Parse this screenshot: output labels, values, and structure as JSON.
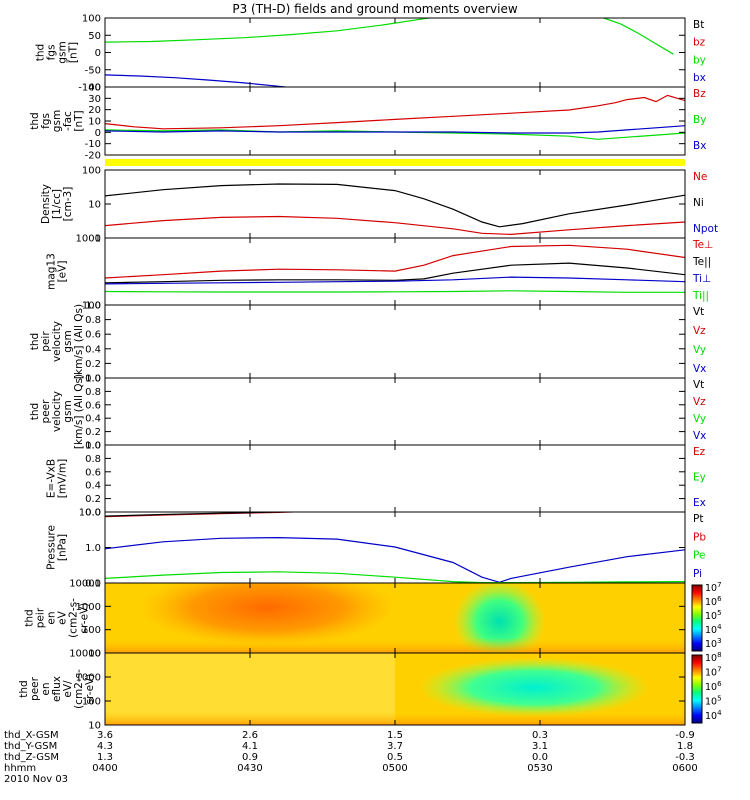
{
  "title": "P3 (TH-D) fields and ground moments overview",
  "colors": {
    "black": "#000000",
    "red": "#d40000",
    "green": "#00dd00",
    "blue": "#0000c8",
    "yellow": "#ffff00"
  },
  "spectrogram_scale": [
    "#00007f",
    "#0000ff",
    "#0080ff",
    "#00ffff",
    "#00ff80",
    "#80ff00",
    "#ffff00",
    "#ff8000",
    "#ff0000",
    "#800000"
  ],
  "chart_data": [
    {
      "id": "fgs_gsm",
      "type": "line",
      "ylabel": [
        "thd",
        "fgs",
        "gsm",
        "[nT]"
      ],
      "ylim": [
        -100,
        100
      ],
      "yticks": [
        "100",
        "50",
        "0",
        "-50",
        "-100"
      ],
      "legend": [
        {
          "text": "Bt",
          "color": "black"
        },
        {
          "text": "bz",
          "color": "red"
        },
        {
          "text": "by",
          "color": "green"
        },
        {
          "text": "bx",
          "color": "blue"
        }
      ],
      "series": [
        {
          "color": "green",
          "x": [
            0,
            0.08,
            0.16,
            0.24,
            0.32,
            0.4,
            0.48,
            0.55,
            0.61,
            0.84,
            0.86,
            0.89,
            0.92,
            0.95,
            0.98
          ],
          "y": [
            30,
            32,
            37,
            43,
            52,
            63,
            80,
            98,
            110,
            110,
            100,
            82,
            55,
            25,
            -5
          ]
        },
        {
          "color": "blue",
          "x": [
            0,
            0.06,
            0.12,
            0.18,
            0.24,
            0.3,
            0.34
          ],
          "y": [
            -65,
            -68,
            -73,
            -80,
            -88,
            -98,
            -105
          ]
        }
      ]
    },
    {
      "id": "fgs_fac",
      "type": "line",
      "ylabel": [
        "thd",
        "fgs",
        "gsm",
        "-fac",
        "[nT]"
      ],
      "ylim": [
        -25,
        40
      ],
      "yticks": [
        "40",
        "30",
        "20",
        "10",
        "0",
        "-10",
        "-20"
      ],
      "legend": [
        {
          "text": "Bz",
          "color": "red"
        },
        {
          "text": "By",
          "color": "green"
        },
        {
          "text": "Bx",
          "color": "blue"
        }
      ],
      "series": [
        {
          "color": "red",
          "x": [
            0,
            0.05,
            0.1,
            0.2,
            0.3,
            0.4,
            0.5,
            0.6,
            0.7,
            0.8,
            0.85,
            0.88,
            0.9,
            0.93,
            0.95,
            0.97,
            1.0
          ],
          "y": [
            5,
            2,
            0,
            1,
            3,
            6,
            9,
            12,
            15,
            18,
            22,
            25,
            28,
            30,
            26,
            32,
            27
          ]
        },
        {
          "color": "green",
          "x": [
            0,
            0.1,
            0.2,
            0.3,
            0.4,
            0.5,
            0.6,
            0.7,
            0.8,
            0.85,
            0.9,
            0.95,
            1.0
          ],
          "y": [
            -1,
            -2,
            -1,
            -3,
            -2,
            -3,
            -4,
            -5,
            -7,
            -10,
            -8,
            -6,
            -4
          ]
        },
        {
          "color": "blue",
          "x": [
            0,
            0.1,
            0.2,
            0.3,
            0.4,
            0.5,
            0.6,
            0.7,
            0.8,
            0.85,
            0.9,
            0.95,
            1.0
          ],
          "y": [
            -2,
            -3,
            -2,
            -3,
            -3,
            -3,
            -3,
            -4,
            -4,
            -3,
            -1,
            1,
            3
          ]
        }
      ],
      "flag_bar": {
        "color": "yellow"
      }
    },
    {
      "id": "density",
      "type": "line",
      "yscale": "log",
      "ylabel": [
        "Density",
        "[1/cc]",
        "[cm-3]"
      ],
      "ylim": [
        0.1,
        200
      ],
      "yticks": [
        "100",
        "10",
        "1"
      ],
      "legend": [
        {
          "text": "Ne",
          "color": "red"
        },
        {
          "text": "Ni",
          "color": "black"
        },
        {
          "text": "Npot",
          "color": "blue"
        }
      ],
      "series": [
        {
          "color": "black",
          "x": [
            0,
            0.1,
            0.2,
            0.3,
            0.4,
            0.5,
            0.55,
            0.6,
            0.65,
            0.68,
            0.72,
            0.8,
            0.9,
            1.0
          ],
          "y": [
            11,
            22,
            35,
            42,
            40,
            20,
            8,
            2.5,
            0.6,
            0.35,
            0.5,
            1.5,
            4,
            12
          ]
        },
        {
          "color": "red",
          "x": [
            0,
            0.1,
            0.2,
            0.3,
            0.4,
            0.5,
            0.6,
            0.65,
            0.7,
            0.8,
            0.9,
            1.0
          ],
          "y": [
            0.4,
            0.7,
            1.0,
            1.1,
            0.9,
            0.55,
            0.28,
            0.17,
            0.15,
            0.25,
            0.4,
            0.6
          ]
        }
      ]
    },
    {
      "id": "temperature",
      "type": "line",
      "yscale": "log",
      "ylabel": [
        "mag13",
        "[eV]"
      ],
      "ylim": [
        100,
        1400
      ],
      "yticks": [
        "1000",
        "100"
      ],
      "legend": [
        {
          "text": "Te⊥",
          "color": "red"
        },
        {
          "text": "Te||",
          "color": "black"
        },
        {
          "text": "Ti⊥",
          "color": "blue"
        },
        {
          "text": "Ti||",
          "color": "green"
        }
      ],
      "series": [
        {
          "color": "red",
          "x": [
            0,
            0.1,
            0.2,
            0.3,
            0.4,
            0.5,
            0.55,
            0.6,
            0.7,
            0.8,
            0.9,
            1.0
          ],
          "y": [
            290,
            330,
            380,
            410,
            400,
            380,
            480,
            700,
            1000,
            1050,
            900,
            650
          ]
        },
        {
          "color": "black",
          "x": [
            0,
            0.1,
            0.2,
            0.3,
            0.4,
            0.5,
            0.55,
            0.6,
            0.7,
            0.8,
            0.9,
            1.0
          ],
          "y": [
            240,
            250,
            265,
            270,
            270,
            265,
            280,
            350,
            480,
            520,
            430,
            330
          ]
        },
        {
          "color": "blue",
          "x": [
            0,
            0.1,
            0.2,
            0.3,
            0.4,
            0.5,
            0.6,
            0.7,
            0.8,
            0.9,
            1.0
          ],
          "y": [
            230,
            235,
            240,
            245,
            250,
            255,
            270,
            300,
            290,
            270,
            250
          ]
        },
        {
          "color": "green",
          "x": [
            0,
            0.1,
            0.2,
            0.3,
            0.4,
            0.5,
            0.6,
            0.7,
            0.8,
            0.9,
            1.0
          ],
          "y": [
            170,
            168,
            167,
            167,
            167,
            168,
            170,
            175,
            170,
            165,
            165
          ]
        }
      ]
    },
    {
      "id": "peir_velocity",
      "type": "line",
      "ylabel": [
        "thd",
        "peir",
        "velocity",
        "gsm",
        "[km/s] (All Qs)"
      ],
      "ylim": [
        0,
        1
      ],
      "yticks": [
        "1.0",
        "0.8",
        "0.6",
        "0.4",
        "0.2",
        "0.0"
      ],
      "legend": [
        {
          "text": "Vt",
          "color": "black"
        },
        {
          "text": "Vz",
          "color": "red"
        },
        {
          "text": "Vy",
          "color": "green"
        },
        {
          "text": "Vx",
          "color": "blue"
        }
      ],
      "series": []
    },
    {
      "id": "peer_velocity",
      "type": "line",
      "ylabel": [
        "thd",
        "peer",
        "velocity",
        "gsm",
        "[km/s] (All Qs)"
      ],
      "ylim": [
        0,
        1
      ],
      "yticks": [
        "1.0",
        "0.8",
        "0.6",
        "0.4",
        "0.2",
        "0.0"
      ],
      "legend": [
        {
          "text": "Vt",
          "color": "black"
        },
        {
          "text": "Vz",
          "color": "red"
        },
        {
          "text": "Vy",
          "color": "green"
        },
        {
          "text": "Vx",
          "color": "blue"
        }
      ],
      "series": []
    },
    {
      "id": "efield",
      "type": "line",
      "ylabel": [
        "E=-VxB",
        "[mV/m]"
      ],
      "ylim": [
        0,
        1
      ],
      "yticks": [
        "1.0",
        "0.8",
        "0.6",
        "0.4",
        "0.2",
        "0.0"
      ],
      "legend": [
        {
          "text": "Ez",
          "color": "red"
        },
        {
          "text": "Ey",
          "color": "green"
        },
        {
          "text": "Ex",
          "color": "blue"
        }
      ],
      "series": []
    },
    {
      "id": "pressure",
      "type": "line",
      "yscale": "log",
      "ylabel": [
        "Pressure",
        "[nPa]"
      ],
      "ylim": [
        0.03,
        15
      ],
      "yticks": [
        "10.0",
        "1.0",
        "0.1"
      ],
      "legend": [
        {
          "text": "Pt",
          "color": "black"
        },
        {
          "text": "Pb",
          "color": "red"
        },
        {
          "text": "Pe",
          "color": "green"
        },
        {
          "text": "Pi",
          "color": "blue"
        }
      ],
      "series": [
        {
          "color": "red",
          "x": [
            0,
            0.1,
            0.2,
            0.3,
            0.34
          ],
          "y": [
            10,
            11.5,
            13,
            14.5,
            15.5
          ]
        },
        {
          "color": "black",
          "x": [
            0,
            0.1,
            0.2,
            0.3,
            0.34
          ],
          "y": [
            10.5,
            12,
            13.5,
            15,
            16
          ]
        },
        {
          "color": "blue",
          "x": [
            0,
            0.1,
            0.2,
            0.3,
            0.4,
            0.5,
            0.6,
            0.65,
            0.68,
            0.7,
            0.8,
            0.9,
            1.0
          ],
          "y": [
            0.6,
            1.1,
            1.5,
            1.6,
            1.4,
            0.7,
            0.18,
            0.05,
            0.032,
            0.045,
            0.12,
            0.3,
            0.55
          ]
        },
        {
          "color": "green",
          "x": [
            0,
            0.1,
            0.2,
            0.3,
            0.4,
            0.5,
            0.6,
            0.65,
            0.7,
            0.8,
            0.9,
            1.0
          ],
          "y": [
            0.045,
            0.06,
            0.075,
            0.08,
            0.07,
            0.05,
            0.034,
            0.031,
            0.031,
            0.032,
            0.033,
            0.034
          ]
        }
      ]
    },
    {
      "id": "peir_spec",
      "type": "heatmap",
      "ylabel": [
        "thd",
        "peir",
        "en",
        "eV",
        "(cm2-s-",
        "sr-eV)"
      ],
      "yscale": "log",
      "ylim": [
        7,
        30000
      ],
      "yticks": [
        "10000",
        "1000",
        "100",
        "10"
      ],
      "colorbar": {
        "scale": "log",
        "labels": [
          "10^7",
          "10^6",
          "10^5",
          "10^4",
          "10^3"
        ]
      }
    },
    {
      "id": "peer_spec",
      "type": "heatmap",
      "ylabel": [
        "thd",
        "peer",
        "en",
        "eflux",
        "eV/",
        "(cm2-s-",
        "sr-eV)"
      ],
      "yscale": "log",
      "ylim": [
        7,
        30000
      ],
      "yticks": [
        "10000",
        "1000",
        "100",
        "10"
      ],
      "colorbar": {
        "scale": "log",
        "labels": [
          "10^8",
          "10^7",
          "10^6",
          "10^5",
          "10^4"
        ]
      }
    }
  ],
  "x_axis": {
    "row_labels": [
      "thd_X-GSM",
      "thd_Y-GSM",
      "thd_Z-GSM",
      "hhmm"
    ],
    "ticks": [
      {
        "x": [
          0,
          0.25,
          0.5,
          0.75,
          1.0
        ]
      }
    ],
    "ephemeris": [
      [
        "3.6",
        "2.6",
        "1.5",
        "0.3",
        "-0.9"
      ],
      [
        "4.3",
        "4.1",
        "3.7",
        "3.1",
        "1.8"
      ],
      [
        "1.3",
        "0.9",
        "0.5",
        "0.0",
        "-0.3"
      ],
      [
        "0400",
        "0430",
        "0500",
        "0530",
        "0600"
      ]
    ],
    "date": "2010 Nov 03"
  }
}
